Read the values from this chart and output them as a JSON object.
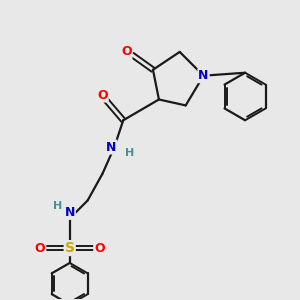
{
  "bg_color": "#e8e8e8",
  "bond_color": "#1a1a1a",
  "atom_colors": {
    "O": "#ff0000",
    "N": "#0000cc",
    "S": "#ccaa00",
    "H": "#4a9090",
    "C": "#1a1a1a"
  },
  "figsize": [
    3.0,
    3.0
  ],
  "dpi": 100
}
